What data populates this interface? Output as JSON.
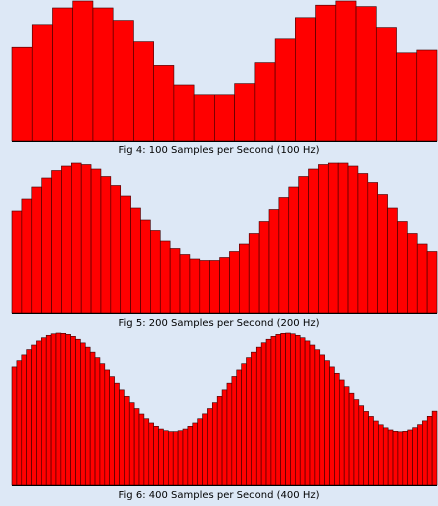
{
  "colors": {
    "background": "#dde8f6",
    "bar_fill": "#ff0000",
    "bar_stroke": "#3a0000",
    "baseline": "#000000"
  },
  "chart_data": [
    {
      "type": "bar",
      "title": "Fig 4: 100 Samples per Second (100 Hz)",
      "signal": "sampled sinusoid",
      "n_bars": 21,
      "values": [
        0.67,
        0.83,
        0.95,
        1.0,
        0.95,
        0.86,
        0.71,
        0.54,
        0.4,
        0.33,
        0.33,
        0.41,
        0.56,
        0.73,
        0.88,
        0.97,
        1.0,
        0.96,
        0.81,
        0.63,
        0.65
      ],
      "ylim": [
        0,
        1
      ],
      "grid": false,
      "legend": "none"
    },
    {
      "type": "bar",
      "title": "Fig 5: 200 Samples per Second (200 Hz)",
      "signal": "sampled sinusoid",
      "n_bars": 43,
      "values": [
        0.68,
        0.76,
        0.84,
        0.9,
        0.95,
        0.98,
        1.0,
        0.99,
        0.96,
        0.91,
        0.85,
        0.78,
        0.7,
        0.62,
        0.55,
        0.48,
        0.43,
        0.39,
        0.36,
        0.35,
        0.35,
        0.37,
        0.41,
        0.46,
        0.53,
        0.61,
        0.69,
        0.77,
        0.84,
        0.91,
        0.96,
        0.99,
        1.0,
        1.0,
        0.98,
        0.93,
        0.87,
        0.79,
        0.7,
        0.61,
        0.53,
        0.46,
        0.41
      ],
      "ylim": [
        0,
        1
      ],
      "grid": false,
      "legend": "none"
    },
    {
      "type": "bar",
      "title": "Fig 6: 400 Samples per Second (400 Hz)",
      "signal": "sampled sinusoid",
      "n_bars": 87,
      "start_value": 0.66,
      "max_value": 1.0,
      "min_value": 0.35,
      "ylim": [
        0,
        1
      ],
      "grid": false,
      "legend": "none"
    }
  ]
}
